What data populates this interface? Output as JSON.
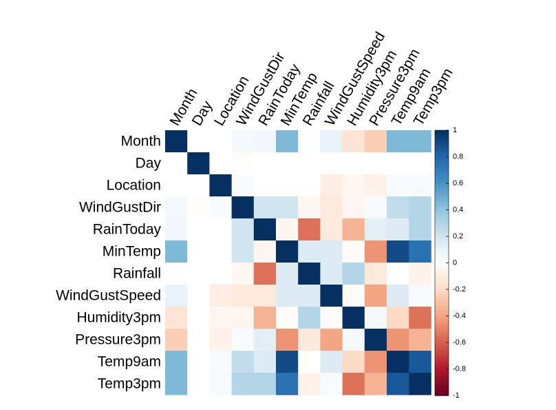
{
  "chart_data": {
    "type": "heatmap",
    "title": "",
    "variables": [
      "Month",
      "Day",
      "Location",
      "WindGustDir",
      "RainToday",
      "MinTemp",
      "Rainfall",
      "WindGustSpeed",
      "Humidity3pm",
      "Pressure3pm",
      "Temp9am",
      "Temp3pm"
    ],
    "matrix": [
      [
        1.0,
        0.0,
        0.0,
        0.05,
        0.06,
        0.45,
        0.01,
        0.1,
        -0.15,
        -0.25,
        0.45,
        0.45
      ],
      [
        0.0,
        1.0,
        0.0,
        -0.01,
        0.0,
        0.0,
        0.0,
        0.0,
        0.0,
        0.0,
        0.0,
        0.0
      ],
      [
        0.0,
        0.0,
        1.0,
        0.03,
        0.0,
        0.0,
        0.0,
        -0.1,
        -0.05,
        -0.07,
        0.03,
        0.04
      ],
      [
        0.05,
        -0.01,
        0.03,
        1.0,
        0.2,
        0.2,
        -0.05,
        -0.12,
        -0.05,
        0.03,
        0.25,
        0.3
      ],
      [
        0.06,
        0.0,
        0.0,
        0.2,
        1.0,
        -0.05,
        -0.55,
        -0.12,
        -0.35,
        0.12,
        0.15,
        0.3
      ],
      [
        0.45,
        0.0,
        0.0,
        0.2,
        -0.05,
        1.0,
        0.15,
        0.15,
        -0.02,
        -0.45,
        0.9,
        0.75
      ],
      [
        0.01,
        0.0,
        0.0,
        -0.05,
        -0.55,
        0.15,
        1.0,
        0.15,
        0.3,
        -0.12,
        0.0,
        -0.07
      ],
      [
        0.1,
        0.0,
        -0.1,
        -0.12,
        -0.12,
        0.15,
        0.15,
        1.0,
        -0.02,
        -0.4,
        0.15,
        0.03
      ],
      [
        -0.15,
        0.0,
        -0.05,
        -0.05,
        -0.35,
        -0.02,
        0.3,
        -0.02,
        1.0,
        0.05,
        -0.2,
        -0.55
      ],
      [
        -0.25,
        0.0,
        -0.07,
        0.03,
        0.12,
        -0.45,
        -0.12,
        -0.4,
        0.05,
        1.0,
        -0.45,
        -0.35
      ],
      [
        0.45,
        0.0,
        0.03,
        0.25,
        0.15,
        0.9,
        0.0,
        0.15,
        -0.2,
        -0.45,
        1.0,
        0.85
      ],
      [
        0.45,
        0.0,
        0.04,
        0.3,
        0.3,
        0.75,
        -0.07,
        0.03,
        -0.55,
        -0.35,
        0.85,
        1.0
      ]
    ],
    "colorbar": {
      "min": -1,
      "max": 1,
      "ticks": [
        "-1",
        "-0.8",
        "-0.6",
        "-0.4",
        "-0.2",
        "0",
        "0.2",
        "0.4",
        "0.6",
        "0.8",
        "1"
      ],
      "tick_values": [
        -1,
        -0.8,
        -0.6,
        -0.4,
        -0.2,
        0,
        0.2,
        0.4,
        0.6,
        0.8,
        1
      ],
      "colors": [
        "#67001F",
        "#B2182B",
        "#D6604D",
        "#F4A582",
        "#FDDBC7",
        "#FFFFFF",
        "#D1E5F0",
        "#92C5DE",
        "#4393C3",
        "#2166AC",
        "#053061"
      ]
    },
    "grid": false,
    "legend": "right"
  }
}
